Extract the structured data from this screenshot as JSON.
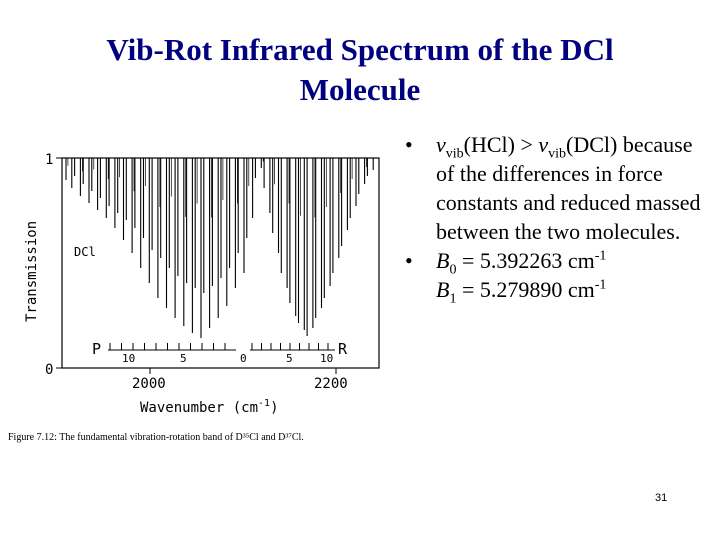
{
  "slide": {
    "title_line1": "Vib-Rot Infrared Spectrum of the DCl",
    "title_line2": "Molecule",
    "slide_number": "31"
  },
  "figure": {
    "y_axis_label": "Transmission",
    "y_tick_top": "1",
    "y_tick_bottom": "0",
    "species_label": "DCl",
    "x_tick_left": "2000",
    "x_tick_right": "2200",
    "x_axis_label": "Wavenumber (cm",
    "x_axis_unit_exp": "-1",
    "x_axis_label_end": ")",
    "branch_p": "P",
    "branch_r": "R",
    "p_j_10": "10",
    "p_j_5": "5",
    "origin_0": "0",
    "r_j_5": "5",
    "r_j_10": "10",
    "caption": "Figure 7.12: The fundamental vibration-rotation band of D³⁵Cl and D³⁷Cl."
  },
  "bullets": {
    "b1_nu1": "ν",
    "b1_sub1": "vib",
    "b1_mol1": "(HCl) > ",
    "b1_nu2": "ν",
    "b1_sub2": "vib",
    "b1_mol2": "(DCl)",
    "b1_rest": "because of the differences in force constants and reduced massed between the two molecules.",
    "b2_B": "B",
    "b2_sub": "0",
    "b2_val": " = 5.392263 cm",
    "b2_sup": "-1",
    "b3_B": "B",
    "b3_sub": "1",
    "b3_val": " = 5.279890 cm",
    "b3_sup": "-1",
    "bullet_char": "•"
  }
}
